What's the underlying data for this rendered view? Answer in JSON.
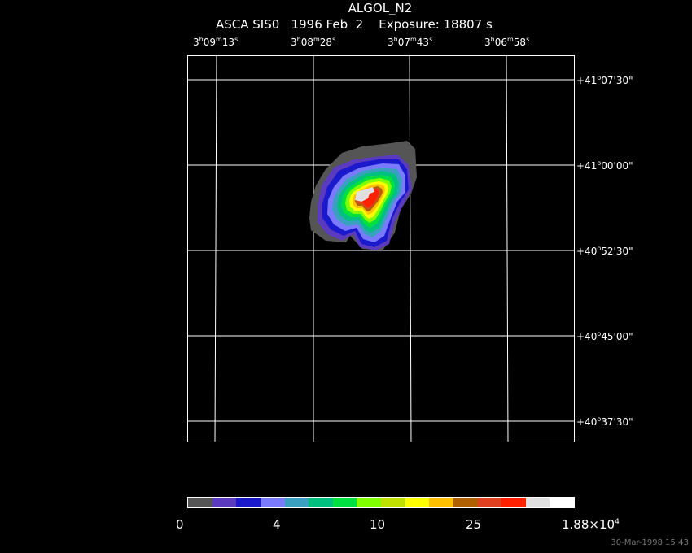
{
  "title": "ALGOL_N2",
  "subtitle": "ASCA SIS0   1996 Feb  2    Exposure: 18807 s",
  "ra_ticks": [
    {
      "h": "3",
      "m": "09",
      "s": "13"
    },
    {
      "h": "3",
      "m": "08",
      "s": "28"
    },
    {
      "h": "3",
      "m": "07",
      "s": "43"
    },
    {
      "h": "3",
      "m": "06",
      "s": "58"
    }
  ],
  "dec_ticks": [
    {
      "d": "+41",
      "m": "07",
      "s": "30"
    },
    {
      "d": "+41",
      "m": "00",
      "s": "00"
    },
    {
      "d": "+40",
      "m": "52",
      "s": "30"
    },
    {
      "d": "+40",
      "m": "45",
      "s": "00"
    },
    {
      "d": "+40",
      "m": "37",
      "s": "30"
    }
  ],
  "colorbar": {
    "colors": [
      "#555555",
      "#5a3bbf",
      "#1a1acc",
      "#7a7aff",
      "#3aa0c0",
      "#00c080",
      "#00e040",
      "#80ff00",
      "#c0e000",
      "#ffff00",
      "#ffc000",
      "#b06000",
      "#e04020",
      "#ff2000",
      "#e0e0e0",
      "#ffffff"
    ],
    "labels": [
      {
        "text": "0",
        "pos": "left"
      },
      {
        "text": "4",
        "pos": "m1"
      },
      {
        "text": "10",
        "pos": "m2"
      },
      {
        "text": "25",
        "pos": "m3"
      },
      {
        "text": "1.88×10",
        "exp": "4",
        "pos": "right"
      }
    ]
  },
  "timestamp": "30-Mar-1998 15:43"
}
